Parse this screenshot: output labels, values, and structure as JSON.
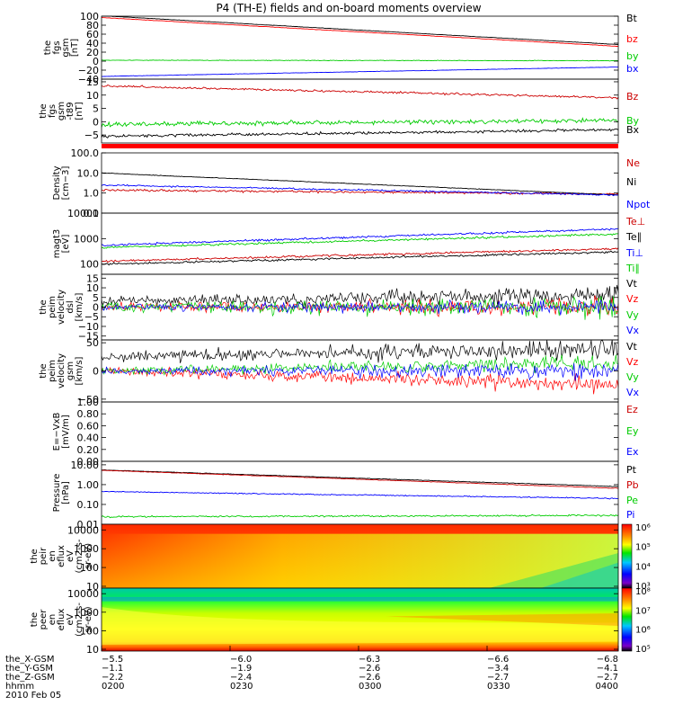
{
  "title": "P4 (TH-E) fields and on-board moments overview",
  "chart_data": [
    {
      "type": "line",
      "ylabel": [
        "the",
        "fgs",
        "gsm",
        "[nT]"
      ],
      "ylim": [
        -40,
        100
      ],
      "ticks": [
        {
          "v": 100,
          "label": "100"
        },
        {
          "v": 80,
          "label": "80"
        },
        {
          "v": 60,
          "label": "60"
        },
        {
          "v": 40,
          "label": "40"
        },
        {
          "v": 20,
          "label": "20"
        },
        {
          "v": 0,
          "label": "0"
        },
        {
          "v": -20,
          "label": "−20"
        },
        {
          "v": -40,
          "label": "−40"
        }
      ],
      "series": [
        {
          "name": "Bt",
          "color": "#000000",
          "start": 101,
          "end": 37,
          "noise": 0.3
        },
        {
          "name": "bz",
          "color": "#ff0000",
          "start": 97,
          "end": 33,
          "noise": 0.3
        },
        {
          "name": "by",
          "color": "#00cc00",
          "start": 2,
          "end": 1,
          "noise": 0.5
        },
        {
          "name": "bx",
          "color": "#0000ff",
          "start": -34,
          "end": -13,
          "noise": 0.3
        }
      ]
    },
    {
      "type": "line",
      "ylabel": [
        "the",
        "fgs",
        "gsm",
        "-t89",
        "[nT]"
      ],
      "ylim": [
        -8,
        16
      ],
      "ticks": [
        {
          "v": 15,
          "label": "15"
        },
        {
          "v": 10,
          "label": "10"
        },
        {
          "v": 5,
          "label": "5"
        },
        {
          "v": 0,
          "label": "0"
        },
        {
          "v": -5,
          "label": "−5"
        }
      ],
      "series": [
        {
          "name": "Bz",
          "color": "#cc0000",
          "start": 13.5,
          "end": 9,
          "noise": 0.3
        },
        {
          "name": "By",
          "color": "#00cc00",
          "start": -1,
          "end": 0.5,
          "noise": 0.6
        },
        {
          "name": "Bx",
          "color": "#000000",
          "start": -5.5,
          "end": -3,
          "noise": 0.4
        }
      ]
    },
    {
      "type": "line",
      "log": true,
      "ylabel": [
        "Density",
        "[cm−3]"
      ],
      "ylim": [
        0.1,
        100
      ],
      "ticks": [
        {
          "v": 100,
          "label": "100.0"
        },
        {
          "v": 10,
          "label": "10.0"
        },
        {
          "v": 1,
          "label": "1.0"
        },
        {
          "v": 0.1,
          "label": "0.1"
        }
      ],
      "series": [
        {
          "name": "Ne",
          "color": "#cc0000",
          "start": 1.4,
          "end": 0.9,
          "noise": 0.04
        },
        {
          "name": "Ni",
          "color": "#000000",
          "start": 10,
          "end": 0.8,
          "noise": 0.01
        },
        {
          "name": "Npot",
          "color": "#0000ff",
          "start": 2.5,
          "end": 0.8,
          "noise": 0.03
        }
      ]
    },
    {
      "type": "line",
      "log": true,
      "ylabel": [
        "magt3",
        "[eV]"
      ],
      "ylim": [
        40,
        10000
      ],
      "ticks": [
        {
          "v": 10000,
          "label": "10000"
        },
        {
          "v": 1000,
          "label": "1000"
        },
        {
          "v": 100,
          "label": "100"
        }
      ],
      "series": [
        {
          "name": "Te⊥",
          "color": "#cc0000",
          "start": 130,
          "end": 400,
          "noise": 0.03
        },
        {
          "name": "Te∥",
          "color": "#000000",
          "start": 100,
          "end": 300,
          "noise": 0.03
        },
        {
          "name": "Ti⊥",
          "color": "#0000ff",
          "start": 550,
          "end": 2400,
          "noise": 0.03
        },
        {
          "name": "Ti∥",
          "color": "#00cc00",
          "start": 450,
          "end": 1500,
          "noise": 0.03
        }
      ]
    },
    {
      "type": "line",
      "ylabel": [
        "the",
        "peim",
        "velocity",
        "dsl",
        "[km/s]"
      ],
      "ylim": [
        -17,
        17
      ],
      "ticks": [
        {
          "v": 15,
          "label": "15"
        },
        {
          "v": 10,
          "label": "10"
        },
        {
          "v": 5,
          "label": "5"
        },
        {
          "v": 0,
          "label": "0"
        },
        {
          "v": -5,
          "label": "−5"
        },
        {
          "v": -10,
          "label": "−10"
        },
        {
          "v": -15,
          "label": "−15"
        }
      ],
      "series": [
        {
          "name": "Vt",
          "color": "#000000",
          "start": 3,
          "end": 6,
          "noise": 3
        },
        {
          "name": "Vz",
          "color": "#ff0000",
          "start": 0,
          "end": 0,
          "noise": 2.5
        },
        {
          "name": "Vy",
          "color": "#00cc00",
          "start": 0,
          "end": 0,
          "noise": 3
        },
        {
          "name": "Vx",
          "color": "#0000ff",
          "start": 0,
          "end": 0,
          "noise": 2
        }
      ]
    },
    {
      "type": "line",
      "ylabel": [
        "the",
        "peim",
        "velocity",
        "gsm",
        "[km/s]"
      ],
      "ylim": [
        -55,
        55
      ],
      "ticks": [
        {
          "v": 50,
          "label": "50"
        },
        {
          "v": 0,
          "label": "0"
        },
        {
          "v": -50,
          "label": "−50"
        }
      ],
      "series": [
        {
          "name": "Vt",
          "color": "#000000",
          "start": 25,
          "end": 40,
          "noise": 10
        },
        {
          "name": "Vz",
          "color": "#ff0000",
          "start": 0,
          "end": -25,
          "noise": 8
        },
        {
          "name": "Vy",
          "color": "#00cc00",
          "start": 0,
          "end": 15,
          "noise": 8
        },
        {
          "name": "Vx",
          "color": "#0000ff",
          "start": 0,
          "end": 0,
          "noise": 8
        }
      ]
    },
    {
      "type": "line",
      "ylabel": [
        "E=−VxB",
        "[mV/m]"
      ],
      "ylim": [
        0,
        1
      ],
      "ticks": [
        {
          "v": 1,
          "label": "1.00"
        },
        {
          "v": 0.8,
          "label": "0.80"
        },
        {
          "v": 0.6,
          "label": "0.60"
        },
        {
          "v": 0.4,
          "label": "0.40"
        },
        {
          "v": 0.2,
          "label": "0.20"
        },
        {
          "v": 0,
          "label": "0.00"
        }
      ],
      "series": [
        {
          "name": "Ez",
          "color": "#cc0000"
        },
        {
          "name": "Ey",
          "color": "#00cc00"
        },
        {
          "name": "Ex",
          "color": "#0000ff"
        }
      ]
    },
    {
      "type": "line",
      "log": true,
      "ylabel": [
        "Pressure",
        "[nPa]"
      ],
      "ylim": [
        0.01,
        15
      ],
      "ticks": [
        {
          "v": 10,
          "label": "10.00"
        },
        {
          "v": 1,
          "label": "1.00"
        },
        {
          "v": 0.1,
          "label": "0.10"
        },
        {
          "v": 0.01,
          "label": "0.01"
        }
      ],
      "series": [
        {
          "name": "Pt",
          "color": "#000000",
          "start": 5.5,
          "end": 0.8,
          "noise": 0.01
        },
        {
          "name": "Pb",
          "color": "#cc0000",
          "start": 5.3,
          "end": 0.65,
          "noise": 0.01
        },
        {
          "name": "Pe",
          "color": "#00cc00",
          "start": 0.024,
          "end": 0.028,
          "noise": 0.03
        },
        {
          "name": "Pi",
          "color": "#0000ff",
          "start": 0.45,
          "end": 0.2,
          "noise": 0.02
        }
      ]
    },
    {
      "type": "heatmap",
      "ylabel": [
        "the",
        "peir",
        "en",
        "eflux",
        "eV",
        "(cm2-s-",
        "sr-eV)"
      ],
      "ylim": [
        8,
        20000
      ],
      "ticks": [
        {
          "v": 10000,
          "label": "10000"
        },
        {
          "v": 1000,
          "label": "1000"
        },
        {
          "v": 100,
          "label": "100"
        },
        {
          "v": 10,
          "label": "10"
        }
      ],
      "colorbar_ticks": [
        "10⁶",
        "10⁵",
        "10⁴",
        "10³"
      ],
      "colorbar_range": [
        1000,
        1000000
      ]
    },
    {
      "type": "heatmap",
      "ylabel": [
        "the",
        "peer",
        "en",
        "eflux",
        "eV",
        "(cm2-s-",
        "sr-eV)"
      ],
      "ylim": [
        8,
        20000
      ],
      "ticks": [
        {
          "v": 10000,
          "label": "10000"
        },
        {
          "v": 1000,
          "label": "1000"
        },
        {
          "v": 100,
          "label": "100"
        },
        {
          "v": 10,
          "label": "10"
        }
      ],
      "colorbar_ticks": [
        "10⁸",
        "10⁷",
        "10⁶",
        "10⁵"
      ],
      "colorbar_range": [
        100000,
        100000000
      ]
    }
  ],
  "xaxis": {
    "rows": [
      {
        "label": "the_X-GSM",
        "values": [
          "−5.5",
          "−6.0",
          "−6.3",
          "−6.6",
          "−6.8"
        ]
      },
      {
        "label": "the_Y-GSM",
        "values": [
          "−1.1",
          "−1.9",
          "−2.6",
          "−3.4",
          "−4.1"
        ]
      },
      {
        "label": "the_Z-GSM",
        "values": [
          "−2.2",
          "−2.4",
          "−2.6",
          "−2.7",
          "−2.7"
        ]
      },
      {
        "label": "hhmm",
        "values": [
          "0200",
          "0230",
          "0300",
          "0330",
          "0400"
        ]
      }
    ],
    "date": "2010 Feb 05"
  }
}
